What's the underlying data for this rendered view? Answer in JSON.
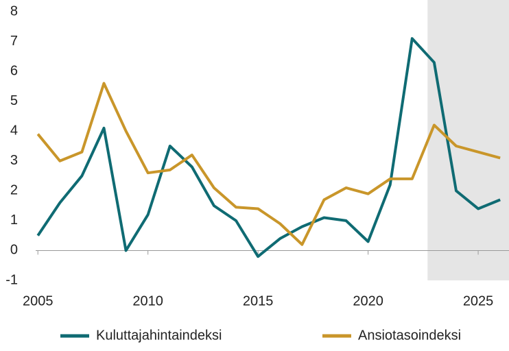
{
  "chart_data": {
    "type": "line",
    "x": [
      2005,
      2006,
      2007,
      2008,
      2009,
      2010,
      2011,
      2012,
      2013,
      2014,
      2015,
      2016,
      2017,
      2018,
      2019,
      2020,
      2021,
      2022,
      2023,
      2024,
      2025,
      2026
    ],
    "series": [
      {
        "name": "Kuluttajahintaindeksi",
        "color": "#0f6b73",
        "values": [
          0.5,
          1.6,
          2.5,
          4.1,
          0,
          1.2,
          3.5,
          2.8,
          1.5,
          1.0,
          -0.2,
          0.4,
          0.8,
          1.1,
          1.0,
          0.3,
          2.2,
          7.1,
          6.3,
          2.0,
          1.4,
          1.7
        ]
      },
      {
        "name": "Ansiotasoindeksi",
        "color": "#c9962a",
        "values": [
          3.9,
          3.0,
          3.3,
          5.6,
          4.0,
          2.6,
          2.7,
          3.2,
          2.1,
          1.45,
          1.4,
          0.9,
          0.2,
          1.7,
          2.1,
          1.9,
          2.4,
          2.4,
          4.2,
          3.5,
          3.3,
          3.1
        ]
      }
    ],
    "xlim": [
      2004.9,
      2026.4
    ],
    "xticks": [
      2005,
      2010,
      2015,
      2020,
      2025
    ],
    "ylim": [
      -1,
      8
    ],
    "yticks": [
      -1,
      0,
      1,
      2,
      3,
      4,
      5,
      6,
      7,
      8
    ],
    "shaded_range": [
      2022.7,
      2026.4
    ],
    "shade_color": "#e5e5e5",
    "legend": "bottom"
  }
}
